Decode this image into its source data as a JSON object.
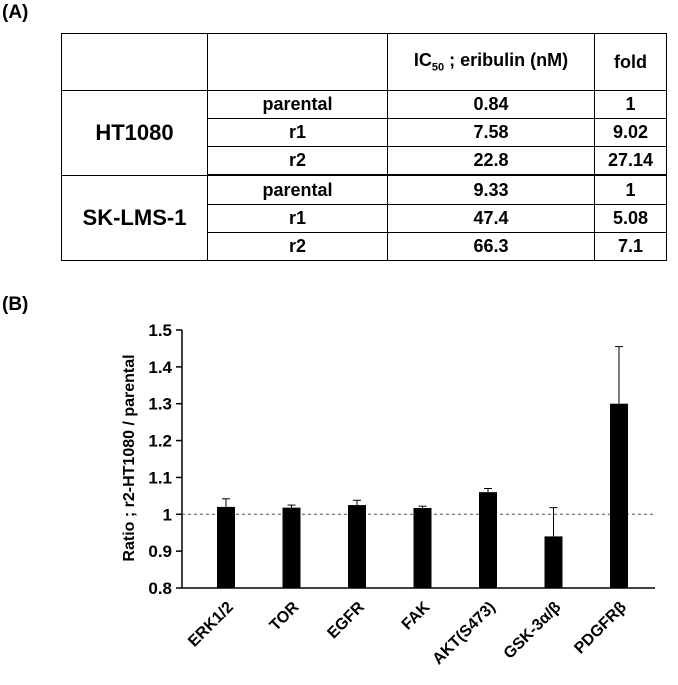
{
  "panel_a": {
    "label": "(A)",
    "table": {
      "header": {
        "ic50_prefix": "IC",
        "ic50_sub": "50",
        "ic50_suffix": " ; eribulin (nM)",
        "fold": "fold"
      },
      "groups": [
        {
          "cell_line": "HT1080",
          "rows": [
            {
              "condition": "parental",
              "ic50": "0.84",
              "fold": "1"
            },
            {
              "condition": "r1",
              "ic50": "7.58",
              "fold": "9.02"
            },
            {
              "condition": "r2",
              "ic50": "22.8",
              "fold": "27.14"
            }
          ]
        },
        {
          "cell_line": "SK-LMS-1",
          "rows": [
            {
              "condition": "parental",
              "ic50": "9.33",
              "fold": "1"
            },
            {
              "condition": "r1",
              "ic50": "47.4",
              "fold": "5.08"
            },
            {
              "condition": "r2",
              "ic50": "66.3",
              "fold": "7.1"
            }
          ]
        }
      ]
    }
  },
  "panel_b": {
    "label": "(B)"
  },
  "chart_data": {
    "type": "bar",
    "title": "",
    "xlabel": "",
    "ylabel": "Ratio ; r2-HT1080 / parental",
    "ylim": [
      0.8,
      1.5
    ],
    "yticks": [
      "0.8",
      "0.9",
      "1",
      "1.1",
      "1.2",
      "1.3",
      "1.4",
      "1.5"
    ],
    "categories": [
      "ERK1/2",
      "TOR",
      "EGFR",
      "FAK",
      "AKT(S473)",
      "GSK-3α/β",
      "PDGFRβ"
    ],
    "values": [
      1.02,
      1.018,
      1.025,
      1.017,
      1.06,
      0.94,
      1.3
    ],
    "errors": [
      0.022,
      0.007,
      0.013,
      0.005,
      0.01,
      0.078,
      0.155
    ],
    "reference_line": 1.0,
    "grid": false,
    "bar_color": "#000000"
  }
}
